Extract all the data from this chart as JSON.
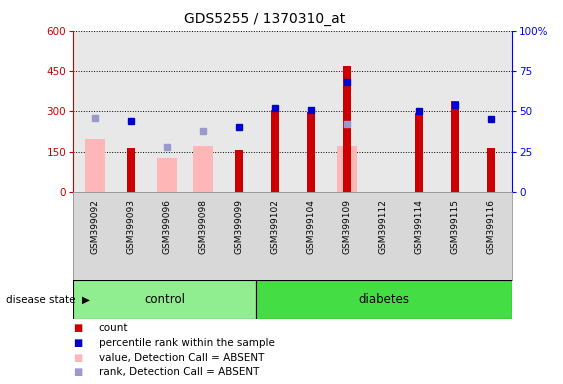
{
  "title": "GDS5255 / 1370310_at",
  "samples": [
    "GSM399092",
    "GSM399093",
    "GSM399096",
    "GSM399098",
    "GSM399099",
    "GSM399102",
    "GSM399104",
    "GSM399109",
    "GSM399112",
    "GSM399114",
    "GSM399115",
    "GSM399116"
  ],
  "groups": [
    "control",
    "control",
    "control",
    "control",
    "control",
    "diabetes",
    "diabetes",
    "diabetes",
    "diabetes",
    "diabetes",
    "diabetes",
    "diabetes"
  ],
  "count_values": [
    null,
    162,
    null,
    null,
    155,
    305,
    298,
    470,
    null,
    293,
    338,
    165
  ],
  "percentile_values": [
    null,
    44,
    null,
    null,
    40,
    52,
    51,
    68,
    null,
    50,
    54,
    45
  ],
  "absent_value_bars": [
    198,
    null,
    128,
    170,
    null,
    null,
    null,
    172,
    null,
    null,
    null,
    null
  ],
  "absent_rank_markers": [
    46,
    null,
    28,
    38,
    null,
    null,
    null,
    42,
    null,
    null,
    null,
    null
  ],
  "count_color": "#CC0000",
  "percentile_color_present": "#0000CC",
  "percentile_color_absent": "#9999CC",
  "absent_bar_color": "#FFB6B6",
  "ylim_left": [
    0,
    600
  ],
  "ylim_right": [
    0,
    100
  ],
  "yticks_left": [
    0,
    150,
    300,
    450,
    600
  ],
  "yticks_right": [
    0,
    25,
    50,
    75,
    100
  ],
  "control_color": "#90EE90",
  "diabetes_color": "#44DD44",
  "group_label": "disease state"
}
